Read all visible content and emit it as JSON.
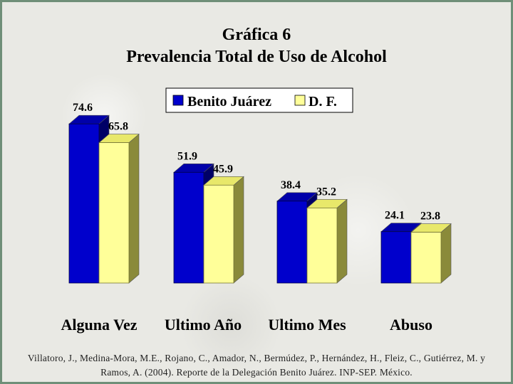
{
  "chart_data": {
    "type": "bar",
    "title": "Gráfica 6",
    "subtitle": "Prevalencia Total de Uso de Alcohol",
    "categories": [
      "Alguna Vez",
      "Ultimo Año",
      "Ultimo Mes",
      "Abuso"
    ],
    "series": [
      {
        "name": "Benito Juárez",
        "values": [
          74.6,
          51.9,
          38.4,
          24.1
        ],
        "color": "#0000cc"
      },
      {
        "name": "D. F.",
        "values": [
          65.8,
          45.9,
          35.2,
          23.8
        ],
        "color": "#ffff99"
      }
    ],
    "value_labels": [
      [
        "74.6",
        "51.9",
        "38.4",
        "24.1"
      ],
      [
        "65.8",
        "45.9",
        "35.2",
        "23.8"
      ]
    ],
    "ylim": [
      0,
      80
    ],
    "grid": false,
    "legend_position": "top-center",
    "style": "3d-bar"
  },
  "source": "Villatoro, J., Medina-Mora, M.E., Rojano, C., Amador, N., Bermúdez, P., Hernández, H., Fleiz, C., Gutiérrez, M. y Ramos, A. (2004). Reporte de la Delegación Benito Juárez. INP-SEP. México."
}
